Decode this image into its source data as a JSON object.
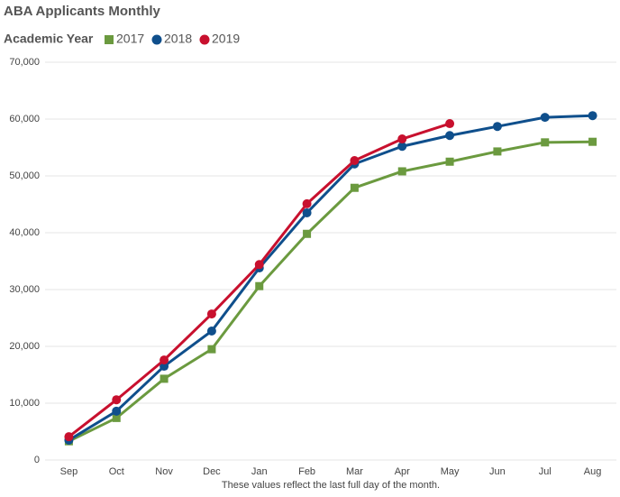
{
  "chart_data": {
    "type": "line",
    "title": "ABA Applicants Monthly",
    "legend_title": "Academic Year",
    "x_label": "These values reflect the last full day of the month.",
    "categories": [
      "Sep",
      "Oct",
      "Nov",
      "Dec",
      "Jan",
      "Feb",
      "Mar",
      "Apr",
      "May",
      "Jun",
      "Jul",
      "Aug"
    ],
    "series": [
      {
        "name": "2017",
        "color": "#6b9a3f",
        "marker": "square",
        "values": [
          3300,
          7400,
          14300,
          19500,
          30600,
          39800,
          47900,
          50800,
          52500,
          54300,
          55900,
          56000
        ]
      },
      {
        "name": "2018",
        "color": "#0f4f8c",
        "marker": "circle",
        "values": [
          3500,
          8600,
          16500,
          22700,
          33800,
          43500,
          52100,
          55200,
          57100,
          58700,
          60300,
          60600
        ]
      },
      {
        "name": "2019",
        "color": "#c8102e",
        "marker": "circle",
        "values": [
          4100,
          10600,
          17600,
          25700,
          34400,
          45100,
          52700,
          56500,
          59200,
          null,
          null,
          null
        ]
      }
    ],
    "ylim": [
      0,
      70000
    ],
    "yticks": [
      0,
      {
        "value": 10000,
        "label": "10,000"
      },
      {
        "value": 20000,
        "label": "20,000"
      },
      {
        "value": 30000,
        "label": "30,000"
      },
      {
        "value": 40000,
        "label": "40,000"
      },
      {
        "value": 50000,
        "label": "50,000"
      },
      {
        "value": 60000,
        "label": "60,000"
      },
      {
        "value": 70000,
        "label": "70,000"
      }
    ],
    "grid": true
  }
}
